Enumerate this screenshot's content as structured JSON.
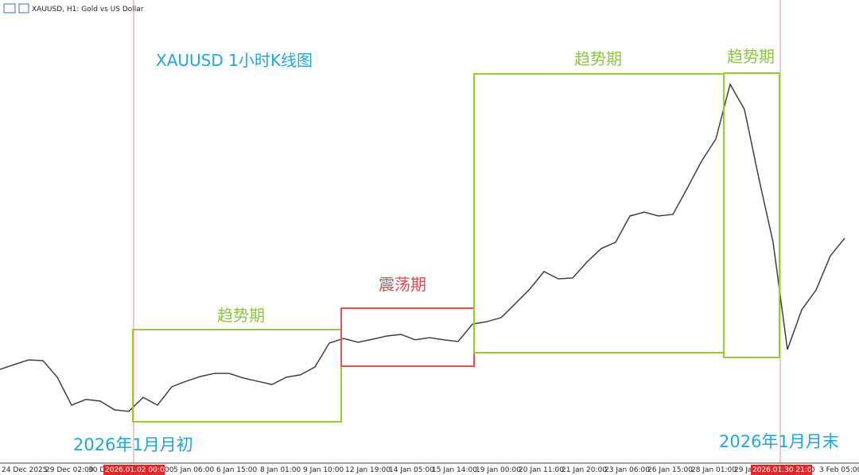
{
  "chart_data": {
    "type": "line",
    "header": "XAUUSD, H1:  Gold vs US Dollar",
    "title": "XAUUSD  1小时K线图",
    "annotations": [
      "趋势期",
      "震荡期",
      "趋势期",
      "趋势期",
      "2026年1月月初",
      "2026年1月月末"
    ],
    "x_axis_labels": [
      "24 Dec 2025",
      "29 Dec 02:00",
      "30 De",
      "2026.01.02 00:00",
      "00",
      "5 Jan 06:00",
      "6 Jan 15:00",
      "8 Jan 01:00",
      "9 Jan 10:00",
      "12 Jan 19:00",
      "14 Jan 05:00",
      "15 Jan 14:00",
      "19 Jan 00:00",
      "20 Jan 11:00",
      "21 Jan 20:00",
      "23 Jan 06:00",
      "26 Jan 15:00",
      "28 Jan 01:00",
      "29 Ja",
      "2026.01.30 21:00",
      "0",
      "3 Feb 05:00"
    ],
    "ylim": [
      4000,
      5700
    ],
    "series": [
      {
        "name": "XAUUSD",
        "color": "#333333",
        "values": [
          4337,
          4355,
          4372,
          4369,
          4308,
          4205,
          4226,
          4220,
          4188,
          4182,
          4234,
          4205,
          4273,
          4293,
          4311,
          4322,
          4322,
          4305,
          4293,
          4281,
          4308,
          4317,
          4346,
          4434,
          4451,
          4437,
          4448,
          4460,
          4466,
          4446,
          4454,
          4446,
          4440,
          4504,
          4513,
          4528,
          4580,
          4633,
          4698,
          4671,
          4674,
          4733,
          4783,
          4806,
          4903,
          4917,
          4903,
          4909,
          5005,
          5105,
          5187,
          5389,
          5296,
          5043,
          4806,
          4410,
          4557,
          4630,
          4756,
          4821
        ]
      }
    ]
  }
}
